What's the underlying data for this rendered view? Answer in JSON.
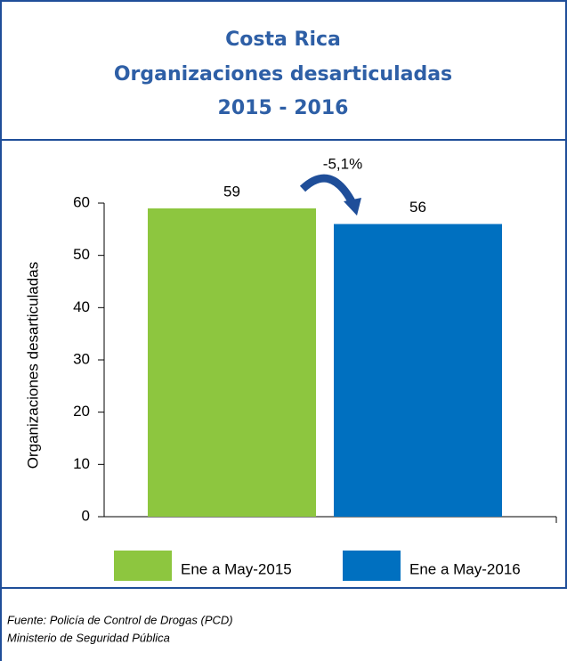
{
  "chart_data": {
    "type": "bar",
    "title": [
      "Costa Rica",
      "Organizaciones desarticuladas",
      "2015 - 2016"
    ],
    "y_label": "Organizaciones desarticuladas",
    "categories": [
      null
    ],
    "series": [
      {
        "name": "Ene a May-2015",
        "color": "#8dc63f",
        "values": [
          59
        ]
      },
      {
        "name": "Ene a May-2016",
        "color": "#0070c0",
        "values": [
          56
        ]
      }
    ],
    "annotation": "-5,1%",
    "ylim": [
      0,
      60
    ],
    "yticks": [
      0,
      10,
      20,
      30,
      40,
      50,
      60
    ],
    "legend": "bottom"
  },
  "source": [
    "Fuente: Policía de Control de Drogas (PCD)",
    "Ministerio de Seguridad Pública"
  ]
}
